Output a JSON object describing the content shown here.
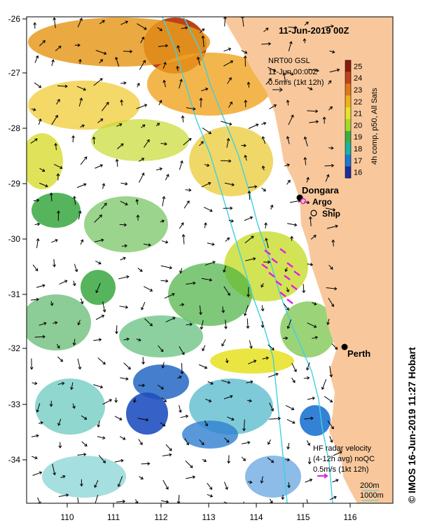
{
  "title": "11-Jun-2019 00Z",
  "product": {
    "line1": "NRT00 GSL",
    "line2": "11-Jun 00:00Z",
    "line3": "0.5m/s (1kt 12h)"
  },
  "colorbar": {
    "label": "4h comp, p50, All Sats",
    "ticks": [
      "25",
      "24",
      "23",
      "22",
      "21",
      "20",
      "19",
      "18",
      "17",
      "16"
    ],
    "colors": [
      "#8b1a0a",
      "#c0421a",
      "#e07a18",
      "#f0b21c",
      "#e8e22c",
      "#a8d82a",
      "#3ab044",
      "#18b4a6",
      "#1a7ad0",
      "#1a2ea0"
    ]
  },
  "places": {
    "dongara": "Dongara",
    "perth": "Perth"
  },
  "legend": {
    "argo": "Argo",
    "ship": "Ship"
  },
  "hf_radar": {
    "line1": "HF radar velocity",
    "line2": "(4-12h avg) noQC",
    "line3": "0.5m/s (1kt 12h)"
  },
  "isobaths": {
    "shallow": "200m",
    "deep": "1000m"
  },
  "credit": "© IMOS 16-Jun-2019 11:27 Hobart",
  "axes": {
    "lon_ticks": [
      "110",
      "111",
      "112",
      "113",
      "114",
      "115",
      "116"
    ],
    "lat_ticks": [
      "-26",
      "-27",
      "-28",
      "-29",
      "-30",
      "-31",
      "-32",
      "-33",
      "-34"
    ]
  },
  "colors": {
    "land": "#f8c89c",
    "isobath": "#40d0e0",
    "argo": "#e020e0"
  }
}
